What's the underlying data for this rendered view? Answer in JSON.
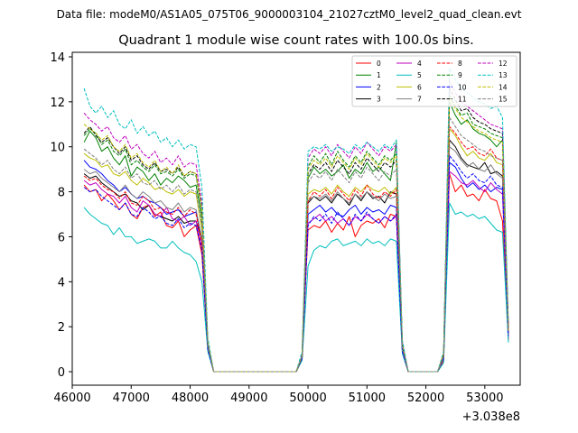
{
  "figure": {
    "suptitle": "Data file: modeM0/AS1A05_075T06_9000003104_21027cztM0_level2_quad_clean.evt"
  },
  "chart_data": {
    "type": "line",
    "title": "Quadrant 1 module wise count rates with 100.0s bins.",
    "xlabel": "",
    "ylabel": "",
    "x_offset_label": "+3.038e8",
    "x_offset": 303800000,
    "xlim": [
      46000,
      53600
    ],
    "ylim": [
      -0.6,
      14.2
    ],
    "xticks": [
      46000,
      47000,
      48000,
      49000,
      50000,
      51000,
      52000,
      53000
    ],
    "yticks": [
      0,
      2,
      4,
      6,
      8,
      10,
      12,
      14
    ],
    "grid": false,
    "legend_location": "top-right",
    "legend_columns": 4,
    "x_note": "x values relative to offset 303800000; time bins every 100 s",
    "x_start": 46200,
    "x_step": 100,
    "series": [
      {
        "name": "0",
        "color": "#ff0000",
        "dash": "solid",
        "values": [
          8.3,
          8.0,
          8.1,
          7.6,
          7.9,
          7.6,
          7.2,
          7.5,
          7.0,
          6.8,
          7.3,
          7.4,
          6.9,
          7.1,
          6.5,
          6.4,
          6.7,
          6.0,
          6.3,
          6.5,
          5.2,
          1.0,
          0,
          0,
          0,
          0,
          0,
          0,
          0,
          0,
          0,
          0,
          0,
          0,
          0,
          0,
          0,
          0.6,
          6.3,
          6.5,
          6.4,
          6.7,
          6.2,
          6.6,
          6.3,
          6.9,
          6.0,
          6.5,
          6.7,
          6.6,
          6.8,
          6.4,
          7.0,
          6.9,
          0.9,
          0,
          0,
          0,
          0,
          0,
          0,
          0.5,
          8.8,
          8.0,
          8.3,
          7.8,
          7.9,
          7.6,
          8.1,
          7.7,
          7.6,
          6.7,
          1.4
        ]
      },
      {
        "name": "1",
        "color": "#008000",
        "dash": "solid",
        "values": [
          10.2,
          10.7,
          10.4,
          9.8,
          10.0,
          9.5,
          9.2,
          9.6,
          8.7,
          9.1,
          8.9,
          8.5,
          8.8,
          8.3,
          8.6,
          8.4,
          8.7,
          8.5,
          8.2,
          8.3,
          6.8,
          1.2,
          0,
          0,
          0,
          0,
          0,
          0,
          0,
          0,
          0,
          0,
          0,
          0,
          0,
          0,
          0,
          0.7,
          8.6,
          9.1,
          8.8,
          9.0,
          8.7,
          8.9,
          9.2,
          8.6,
          9.0,
          8.8,
          9.3,
          8.9,
          9.1,
          8.8,
          8.5,
          10.2,
          1.1,
          0,
          0,
          0,
          0,
          0,
          0,
          0.7,
          12.0,
          11.4,
          11.0,
          11.2,
          10.8,
          10.6,
          10.5,
          10.3,
          10.0,
          10.3,
          1.9
        ]
      },
      {
        "name": "2",
        "color": "#0000ff",
        "dash": "solid",
        "values": [
          9.4,
          9.1,
          9.0,
          8.8,
          8.5,
          8.3,
          8.0,
          8.2,
          7.9,
          7.7,
          7.8,
          7.6,
          7.5,
          7.3,
          7.0,
          7.1,
          7.2,
          6.9,
          7.0,
          7.1,
          5.8,
          1.1,
          0,
          0,
          0,
          0,
          0,
          0,
          0,
          0,
          0,
          0,
          0,
          0,
          0,
          0,
          0,
          0.6,
          7.0,
          7.2,
          7.4,
          7.1,
          7.3,
          7.0,
          6.9,
          7.2,
          7.4,
          7.0,
          7.3,
          7.1,
          7.2,
          7.0,
          7.4,
          7.3,
          1.0,
          0,
          0,
          0,
          0,
          0,
          0,
          0.6,
          9.3,
          9.1,
          8.6,
          8.2,
          8.4,
          8.1,
          8.3,
          8.0,
          8.2,
          8.1,
          1.6
        ]
      },
      {
        "name": "3",
        "color": "#000000",
        "dash": "solid",
        "values": [
          8.8,
          8.6,
          8.7,
          8.4,
          8.2,
          8.0,
          7.8,
          7.9,
          7.6,
          7.5,
          7.2,
          7.4,
          7.0,
          6.9,
          6.8,
          6.7,
          6.9,
          6.6,
          6.7,
          6.7,
          5.9,
          1.1,
          0,
          0,
          0,
          0,
          0,
          0,
          0,
          0,
          0,
          0,
          0,
          0,
          0,
          0,
          0,
          0.6,
          7.5,
          7.8,
          7.6,
          7.8,
          7.5,
          7.9,
          7.7,
          7.4,
          7.9,
          7.6,
          8.0,
          7.7,
          7.8,
          7.5,
          8.0,
          7.9,
          1.0,
          0,
          0,
          0,
          0,
          0,
          0,
          0.6,
          10.3,
          10.0,
          9.5,
          9.2,
          9.1,
          9.0,
          9.3,
          8.8,
          8.9,
          8.7,
          1.7
        ]
      },
      {
        "name": "4",
        "color": "#bf00bf",
        "dash": "solid",
        "values": [
          8.5,
          8.3,
          8.4,
          8.1,
          7.9,
          7.8,
          7.5,
          7.8,
          7.3,
          7.1,
          7.6,
          7.4,
          7.0,
          6.9,
          7.3,
          6.8,
          6.7,
          6.9,
          6.5,
          6.7,
          5.5,
          1.1,
          0,
          0,
          0,
          0,
          0,
          0,
          0,
          0,
          0,
          0,
          0,
          0,
          0,
          0,
          0,
          0.6,
          6.6,
          6.8,
          7.0,
          6.7,
          6.9,
          6.6,
          6.8,
          6.5,
          6.9,
          6.7,
          7.0,
          6.8,
          6.6,
          6.9,
          6.7,
          6.9,
          1.0,
          0,
          0,
          0,
          0,
          0,
          0,
          0.6,
          8.9,
          8.7,
          8.4,
          8.3,
          8.5,
          8.2,
          8.0,
          8.4,
          8.1,
          7.9,
          1.5
        ]
      },
      {
        "name": "5",
        "color": "#00bfbf",
        "dash": "solid",
        "values": [
          7.3,
          7.0,
          6.8,
          6.6,
          6.5,
          6.1,
          6.4,
          6.0,
          6.0,
          5.7,
          5.8,
          5.9,
          5.8,
          5.5,
          5.5,
          5.8,
          5.5,
          5.3,
          5.2,
          4.9,
          4.0,
          0.9,
          0,
          0,
          0,
          0,
          0,
          0,
          0,
          0,
          0,
          0,
          0,
          0,
          0,
          0,
          0,
          0.5,
          4.7,
          5.4,
          5.6,
          5.5,
          5.8,
          5.9,
          5.6,
          5.7,
          5.8,
          5.6,
          5.9,
          5.7,
          5.8,
          5.6,
          5.9,
          5.8,
          0.8,
          0,
          0,
          0,
          0,
          0,
          0,
          0.4,
          7.5,
          7.0,
          7.1,
          6.9,
          7.0,
          6.8,
          6.9,
          6.6,
          6.3,
          6.2,
          1.3
        ]
      },
      {
        "name": "6",
        "color": "#bfbf00",
        "dash": "solid",
        "values": [
          9.7,
          9.5,
          9.4,
          9.1,
          9.2,
          8.8,
          8.7,
          8.9,
          8.5,
          8.3,
          8.6,
          8.4,
          8.1,
          8.2,
          8.0,
          7.9,
          8.1,
          7.8,
          8.0,
          7.9,
          6.3,
          1.2,
          0,
          0,
          0,
          0,
          0,
          0,
          0,
          0,
          0,
          0,
          0,
          0,
          0,
          0,
          0,
          0.7,
          7.9,
          8.1,
          8.0,
          8.2,
          7.9,
          8.3,
          8.0,
          7.8,
          8.2,
          8.0,
          8.3,
          8.1,
          8.0,
          8.2,
          7.9,
          8.2,
          1.1,
          0,
          0,
          0,
          0,
          0,
          0,
          0.7,
          10.8,
          10.5,
          10.0,
          9.6,
          9.8,
          9.5,
          9.4,
          9.7,
          9.3,
          9.2,
          1.8
        ]
      },
      {
        "name": "7",
        "color": "#808080",
        "dash": "solid",
        "values": [
          9.0,
          8.8,
          8.9,
          8.6,
          8.4,
          8.2,
          8.0,
          8.3,
          7.9,
          7.7,
          8.0,
          7.8,
          7.5,
          7.6,
          7.3,
          7.2,
          7.5,
          7.1,
          7.3,
          7.2,
          5.9,
          1.1,
          0,
          0,
          0,
          0,
          0,
          0,
          0,
          0,
          0,
          0,
          0,
          0,
          0,
          0,
          0,
          0.6,
          7.6,
          7.8,
          7.7,
          7.9,
          7.6,
          8.0,
          7.7,
          7.5,
          7.9,
          7.7,
          8.0,
          7.8,
          7.6,
          7.9,
          7.7,
          7.8,
          1.0,
          0,
          0,
          0,
          0,
          0,
          0,
          0.6,
          10.0,
          9.8,
          9.4,
          9.1,
          9.3,
          9.0,
          8.9,
          9.2,
          8.8,
          8.6,
          1.6
        ]
      },
      {
        "name": "8",
        "color": "#ff0000",
        "dash": "dashed",
        "values": [
          8.7,
          8.5,
          8.6,
          8.3,
          8.1,
          8.0,
          7.7,
          8.0,
          7.5,
          7.4,
          7.8,
          7.6,
          7.2,
          7.3,
          7.1,
          7.0,
          7.3,
          6.9,
          7.2,
          7.0,
          5.7,
          1.1,
          0,
          0,
          0,
          0,
          0,
          0,
          0,
          0,
          0,
          0,
          0,
          0,
          0,
          0,
          0,
          0.6,
          7.6,
          8.0,
          7.8,
          8.1,
          7.7,
          8.2,
          7.9,
          7.6,
          8.1,
          7.8,
          8.3,
          7.9,
          7.7,
          8.0,
          7.8,
          8.1,
          1.0,
          0,
          0,
          0,
          0,
          0,
          0,
          0.6,
          10.9,
          10.6,
          10.2,
          9.9,
          10.0,
          9.7,
          9.6,
          9.9,
          9.5,
          9.4,
          1.8
        ]
      },
      {
        "name": "9",
        "color": "#008000",
        "dash": "dashed",
        "values": [
          10.5,
          10.8,
          10.6,
          10.1,
          10.3,
          9.8,
          9.6,
          9.9,
          9.2,
          9.4,
          9.1,
          8.9,
          9.2,
          8.8,
          8.9,
          8.7,
          9.0,
          8.6,
          8.8,
          8.7,
          7.1,
          1.3,
          0,
          0,
          0,
          0,
          0,
          0,
          0,
          0,
          0,
          0,
          0,
          0,
          0,
          0,
          0,
          0.7,
          9.1,
          9.6,
          9.3,
          9.7,
          9.2,
          9.8,
          9.4,
          9.1,
          9.6,
          9.3,
          9.8,
          9.5,
          9.2,
          9.6,
          9.4,
          9.7,
          1.2,
          0,
          0,
          0,
          0,
          0,
          0,
          0.8,
          12.3,
          11.8,
          11.4,
          11.5,
          11.0,
          10.9,
          10.8,
          10.6,
          10.5,
          10.4,
          2.0
        ]
      },
      {
        "name": "10",
        "color": "#0000ff",
        "dash": "dashed",
        "values": [
          8.2,
          8.0,
          8.1,
          7.8,
          7.6,
          7.4,
          7.2,
          7.5,
          7.0,
          6.9,
          7.3,
          7.1,
          6.8,
          6.9,
          6.6,
          6.5,
          6.8,
          6.4,
          6.6,
          6.5,
          5.4,
          1.0,
          0,
          0,
          0,
          0,
          0,
          0,
          0,
          0,
          0,
          0,
          0,
          0,
          0,
          0,
          0,
          0.6,
          6.5,
          6.9,
          6.7,
          7.0,
          6.6,
          7.1,
          6.8,
          6.5,
          7.0,
          6.7,
          7.1,
          6.8,
          6.6,
          6.9,
          6.7,
          7.0,
          0.9,
          0,
          0,
          0,
          0,
          0,
          0,
          0.6,
          9.6,
          9.3,
          8.9,
          8.6,
          8.8,
          8.5,
          8.4,
          8.7,
          8.3,
          8.2,
          1.6
        ]
      },
      {
        "name": "11",
        "color": "#000000",
        "dash": "dashed",
        "values": [
          10.6,
          10.9,
          10.5,
          10.2,
          10.4,
          10.0,
          9.7,
          10.0,
          9.4,
          9.6,
          9.2,
          9.0,
          9.3,
          8.9,
          9.0,
          8.8,
          9.1,
          8.7,
          8.9,
          8.8,
          7.2,
          1.3,
          0,
          0,
          0,
          0,
          0,
          0,
          0,
          0,
          0,
          0,
          0,
          0,
          0,
          0,
          0,
          0.7,
          8.8,
          9.2,
          9.0,
          9.3,
          8.9,
          9.4,
          9.1,
          8.8,
          9.3,
          9.0,
          9.5,
          9.2,
          8.9,
          9.3,
          9.1,
          9.4,
          1.2,
          0,
          0,
          0,
          0,
          0,
          0,
          0.8,
          12.6,
          12.1,
          11.6,
          11.7,
          11.3,
          11.1,
          11.0,
          10.8,
          10.7,
          10.6,
          2.0
        ]
      },
      {
        "name": "12",
        "color": "#bf00bf",
        "dash": "dashed",
        "values": [
          11.5,
          11.2,
          11.0,
          10.7,
          10.9,
          10.4,
          10.2,
          10.5,
          9.9,
          10.1,
          9.7,
          9.5,
          9.8,
          9.3,
          9.5,
          9.2,
          9.6,
          9.1,
          9.3,
          9.2,
          7.5,
          1.4,
          0,
          0,
          0,
          0,
          0,
          0,
          0,
          0,
          0,
          0,
          0,
          0,
          0,
          0,
          0,
          0.8,
          9.5,
          9.9,
          9.7,
          10.0,
          9.6,
          10.1,
          9.8,
          9.5,
          10.0,
          9.7,
          10.2,
          9.9,
          9.6,
          10.0,
          9.8,
          10.1,
          1.3,
          0,
          0,
          0,
          0,
          0,
          0,
          0.8,
          12.9,
          12.4,
          12.0,
          11.8,
          11.6,
          11.4,
          11.2,
          11.0,
          10.9,
          10.8,
          2.1
        ]
      },
      {
        "name": "13",
        "color": "#00bfbf",
        "dash": "dashed",
        "values": [
          12.6,
          11.8,
          11.5,
          11.8,
          11.3,
          11.6,
          11.0,
          10.8,
          11.2,
          10.6,
          10.9,
          10.5,
          10.7,
          10.2,
          10.4,
          10.0,
          10.3,
          9.9,
          10.1,
          10.0,
          8.2,
          1.5,
          0,
          0,
          0,
          0,
          0,
          0,
          0,
          0,
          0,
          0,
          0,
          0,
          0,
          0,
          0,
          0.9,
          9.8,
          10.0,
          9.9,
          10.1,
          9.8,
          10.0,
          9.9,
          9.7,
          10.1,
          9.9,
          10.2,
          10.0,
          9.8,
          10.1,
          9.9,
          10.3,
          1.4,
          0,
          0,
          0,
          0,
          0,
          0,
          0.9,
          13.5,
          13.0,
          12.6,
          12.4,
          12.2,
          12.0,
          11.9,
          11.7,
          11.8,
          11.3,
          2.2
        ]
      },
      {
        "name": "14",
        "color": "#bfbf00",
        "dash": "dashed",
        "values": [
          11.0,
          10.8,
          10.6,
          10.3,
          10.5,
          10.0,
          9.8,
          10.1,
          9.5,
          9.7,
          9.3,
          9.1,
          9.4,
          8.9,
          9.1,
          8.8,
          9.2,
          8.7,
          8.9,
          8.8,
          7.2,
          1.3,
          0,
          0,
          0,
          0,
          0,
          0,
          0,
          0,
          0,
          0,
          0,
          0,
          0,
          0,
          0,
          0.7,
          9.0,
          9.4,
          9.2,
          9.5,
          9.1,
          9.6,
          9.3,
          9.0,
          9.5,
          9.2,
          9.7,
          9.4,
          9.1,
          9.5,
          9.3,
          9.6,
          1.2,
          0,
          0,
          0,
          0,
          0,
          0,
          0.8,
          12.2,
          11.7,
          11.3,
          11.1,
          10.9,
          10.7,
          10.6,
          10.4,
          10.3,
          10.2,
          1.9
        ]
      },
      {
        "name": "15",
        "color": "#808080",
        "dash": "dashed",
        "values": [
          9.9,
          9.7,
          9.5,
          9.2,
          9.4,
          9.0,
          8.8,
          9.1,
          8.6,
          8.8,
          8.4,
          8.3,
          8.5,
          8.1,
          8.3,
          8.0,
          8.3,
          7.9,
          8.1,
          8.0,
          6.5,
          1.2,
          0,
          0,
          0,
          0,
          0,
          0,
          0,
          0,
          0,
          0,
          0,
          0,
          0,
          0,
          0,
          0.7,
          8.4,
          8.8,
          8.6,
          8.9,
          8.5,
          9.0,
          8.7,
          8.4,
          8.9,
          8.6,
          9.1,
          8.8,
          8.5,
          8.9,
          8.7,
          9.0,
          1.1,
          0,
          0,
          0,
          0,
          0,
          0,
          0.7,
          11.3,
          10.9,
          10.5,
          10.3,
          10.1,
          9.9,
          9.8,
          9.6,
          9.5,
          9.4,
          1.8
        ]
      }
    ]
  }
}
